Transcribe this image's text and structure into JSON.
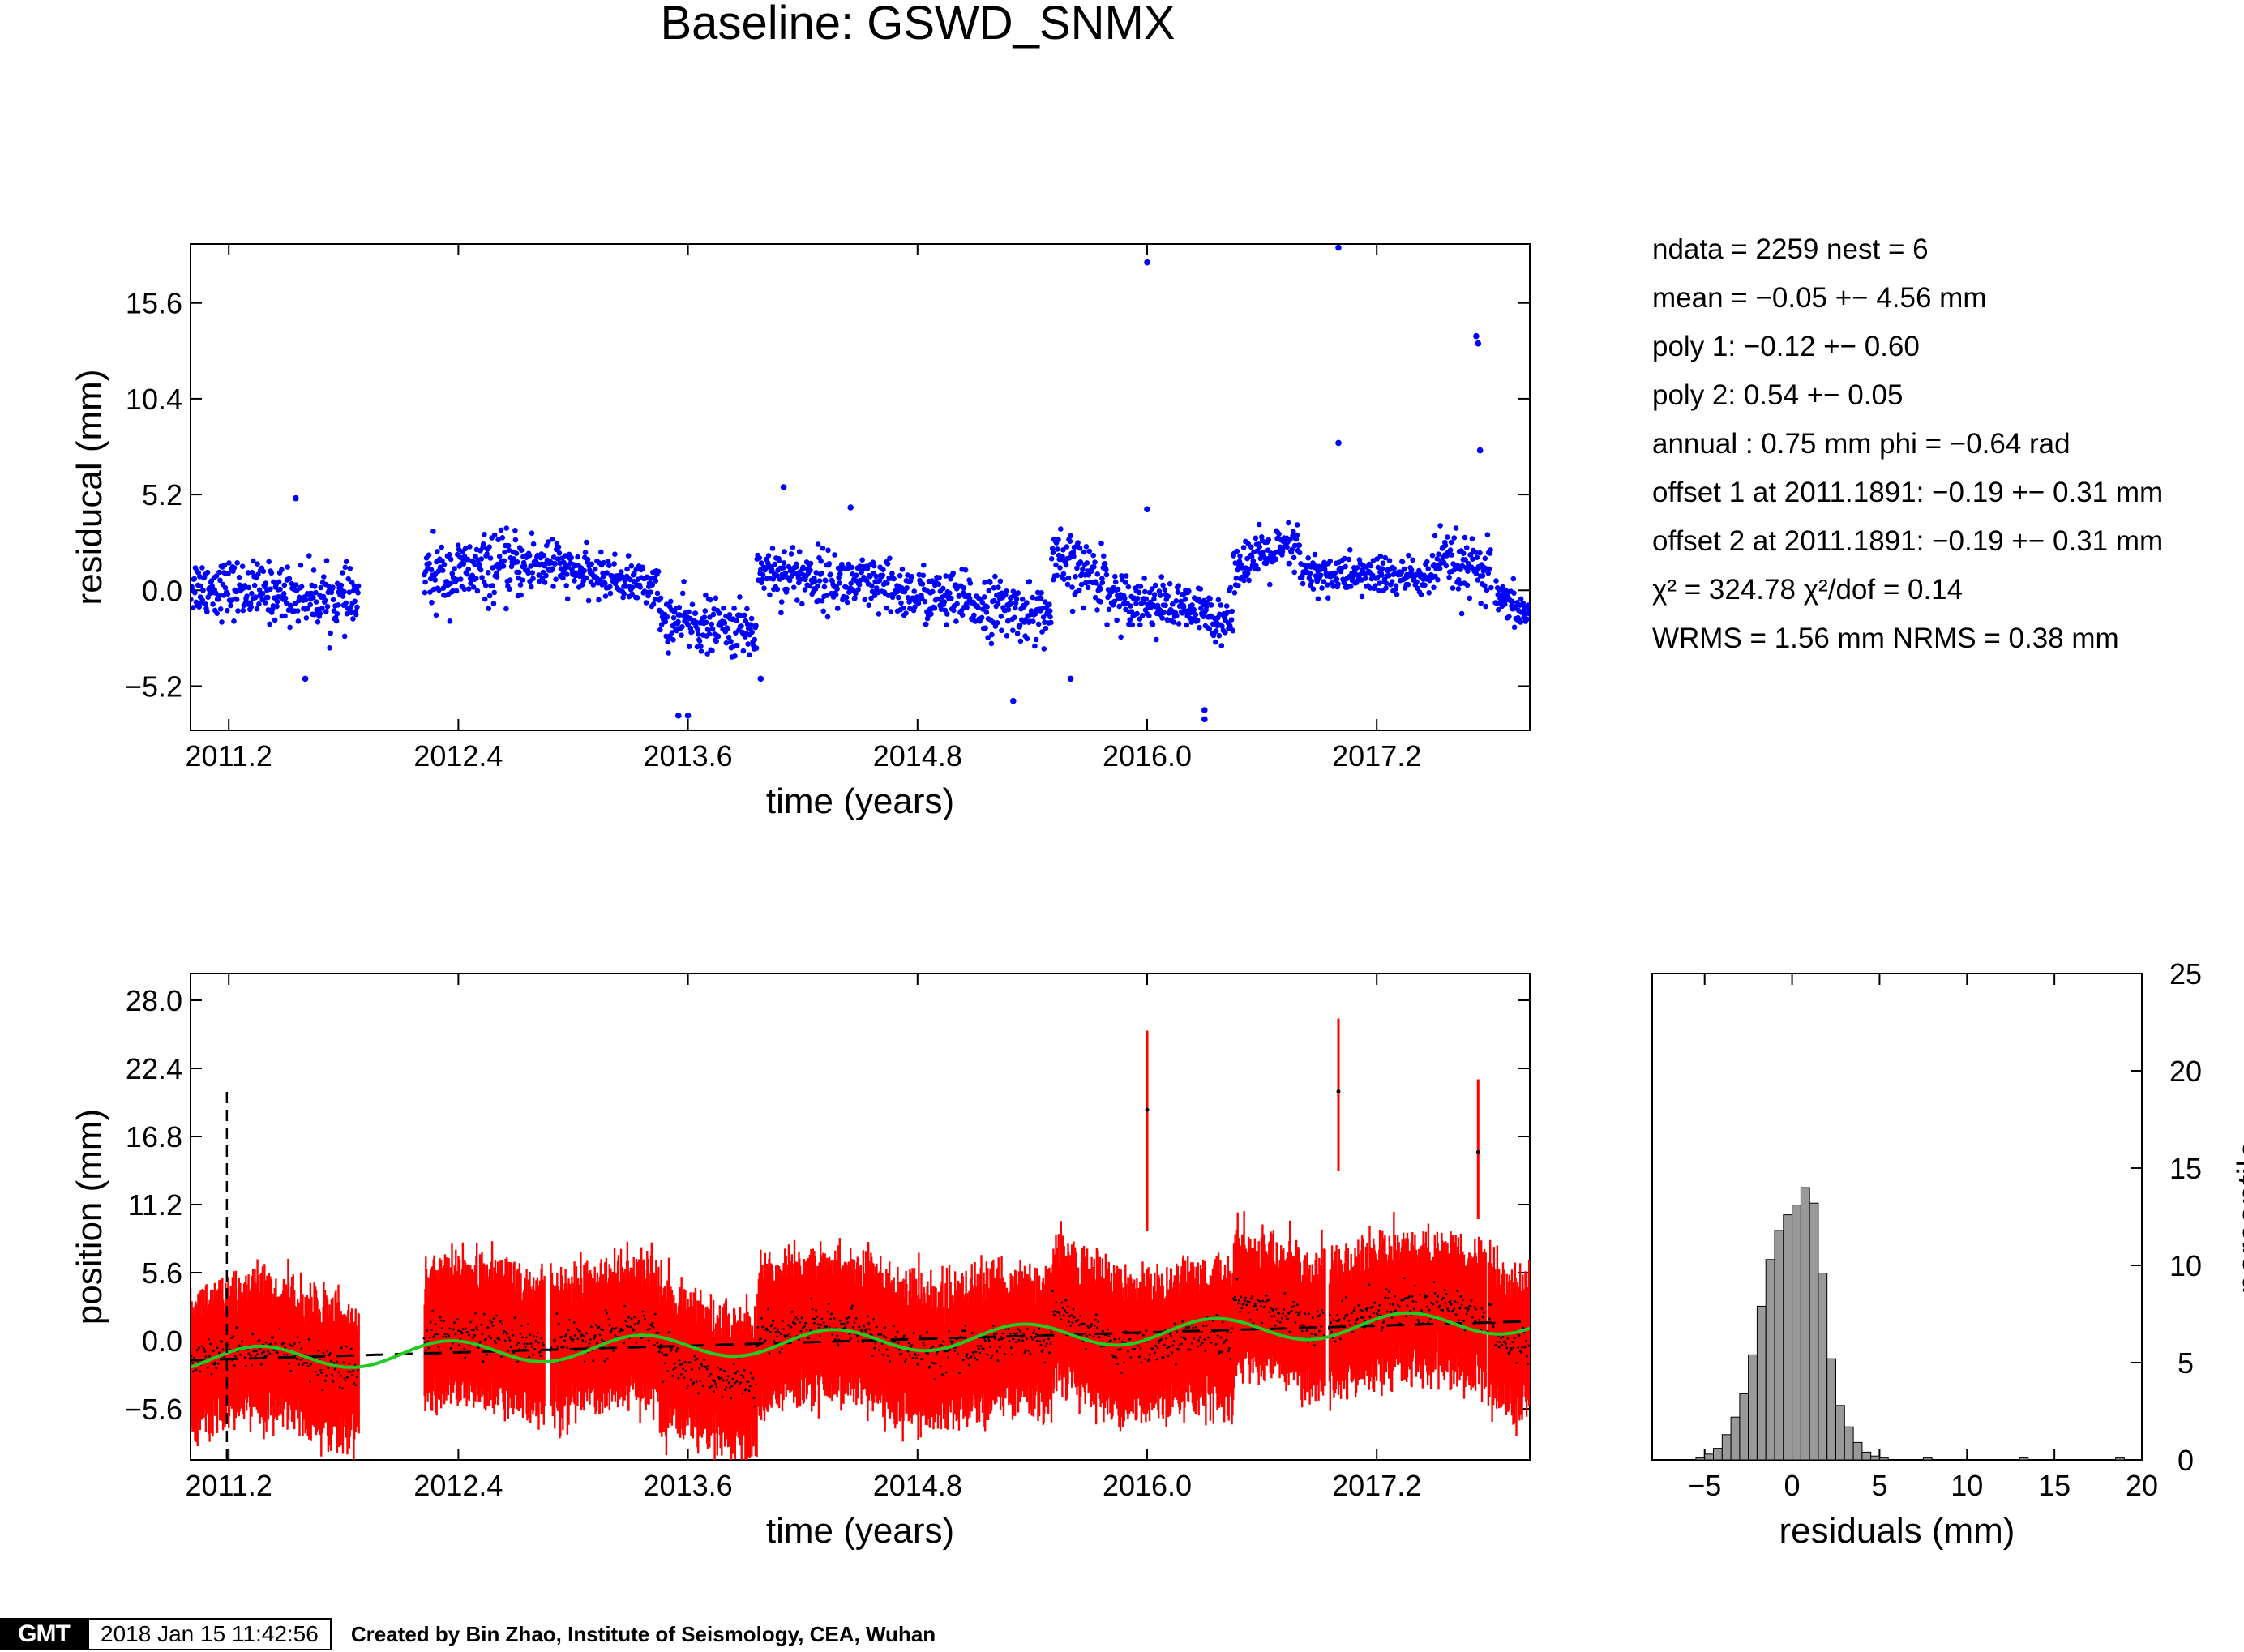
{
  "title": "Baseline: GSWD_SNMX",
  "stats": {
    "lines": [
      "ndata = 2259  nest = 6",
      "mean = −0.05 +− 4.56 mm",
      "poly 1: −0.12 +− 0.60",
      "poly 2: 0.54 +− 0.05",
      "annual : 0.75 mm  phi = −0.64 rad",
      "offset 1 at 2011.1891: −0.19 +− 0.31 mm",
      "offset 2 at 2011.1891: −0.19 +− 0.31 mm",
      "χ² = 324.78  χ²/dof = 0.14",
      "WRMS = 1.56 mm  NRMS = 0.38 mm"
    ]
  },
  "footer": {
    "logo": "GMT",
    "timestamp": "2018 Jan 15 11:42:56",
    "credit": "Created by Bin Zhao, Institute of Seismology, CEA, Wuhan"
  },
  "colors": {
    "residual_points": "#0000ff",
    "position_bars": "#ff0000",
    "model_curve": "#22cc22",
    "trend_line": "#000000",
    "histogram_bars": "#999999"
  },
  "chart_data": [
    {
      "type": "scatter",
      "xlabel": "time (years)",
      "ylabel": "residucal (mm)",
      "xlim": [
        2011.0,
        2018.0
      ],
      "ylim": [
        -7.6,
        18.8
      ],
      "xticks": [
        "2011.2",
        "2012.4",
        "2013.6",
        "2014.8",
        "2016.0",
        "2017.2"
      ],
      "xtick_values": [
        2011.2,
        2012.4,
        2013.6,
        2014.8,
        2016.0,
        2017.2
      ],
      "yticks": [
        "15.6",
        "10.4",
        "5.2",
        "0.0",
        "−5.2"
      ],
      "ytick_values": [
        15.6,
        10.4,
        5.2,
        0.0,
        -5.2
      ],
      "segments": [
        {
          "x": [
            2011.0,
            2011.88
          ],
          "mean": [
            0.3,
            -0.6
          ],
          "spread": 1.4
        },
        {
          "x": [
            2012.22,
            2012.92
          ],
          "mean": [
            0.7,
            1.6
          ],
          "spread": 1.6
        },
        {
          "x": [
            2012.92,
            2013.45
          ],
          "mean": [
            1.2,
            0.2
          ],
          "spread": 1.0
        },
        {
          "x": [
            2013.45,
            2013.96
          ],
          "mean": [
            -1.6,
            -2.3
          ],
          "spread": 1.3
        },
        {
          "x": [
            2013.96,
            2015.5
          ],
          "mean": [
            1.2,
            -1.4
          ],
          "spread": 1.4
        },
        {
          "x": [
            2015.5,
            2015.8
          ],
          "mean": [
            1.5,
            0.6
          ],
          "spread": 1.6
        },
        {
          "x": [
            2015.8,
            2016.45
          ],
          "mean": [
            -0.2,
            -1.6
          ],
          "spread": 1.2
        },
        {
          "x": [
            2016.45,
            2016.8
          ],
          "mean": [
            1.4,
            2.4
          ],
          "spread": 1.2
        },
        {
          "x": [
            2016.8,
            2017.5
          ],
          "mean": [
            0.9,
            0.7
          ],
          "spread": 1.0
        },
        {
          "x": [
            2017.5,
            2017.8
          ],
          "mean": [
            1.6,
            0.8
          ],
          "spread": 1.5
        },
        {
          "x": [
            2017.82,
            2018.0
          ],
          "mean": [
            -0.4,
            -1.4
          ],
          "spread": 0.9
        }
      ],
      "outliers": [
        {
          "x": 2016.0,
          "y": 17.8
        },
        {
          "x": 2017.0,
          "y": 18.6
        },
        {
          "x": 2017.0,
          "y": 8.0
        },
        {
          "x": 2017.72,
          "y": 13.8
        },
        {
          "x": 2017.73,
          "y": 13.4
        },
        {
          "x": 2017.74,
          "y": 7.6
        },
        {
          "x": 2016.0,
          "y": 4.4
        },
        {
          "x": 2011.55,
          "y": 5.0
        },
        {
          "x": 2014.1,
          "y": 5.6
        },
        {
          "x": 2014.45,
          "y": 4.5
        },
        {
          "x": 2015.3,
          "y": -6.0
        },
        {
          "x": 2016.3,
          "y": -7.0
        },
        {
          "x": 2016.3,
          "y": -6.5
        },
        {
          "x": 2013.6,
          "y": -6.8
        },
        {
          "x": 2013.55,
          "y": -6.8
        },
        {
          "x": 2011.6,
          "y": -4.8
        },
        {
          "x": 2015.6,
          "y": -4.8
        },
        {
          "x": 2013.98,
          "y": -4.8
        }
      ]
    },
    {
      "type": "line",
      "xlabel": "time (years)",
      "ylabel": "position (mm)",
      "xlim": [
        2011.0,
        2018.0
      ],
      "ylim": [
        -9.8,
        30.2
      ],
      "xticks": [
        "2011.2",
        "2012.4",
        "2013.6",
        "2014.8",
        "2016.0",
        "2017.2"
      ],
      "xtick_values": [
        2011.2,
        2012.4,
        2013.6,
        2014.8,
        2016.0,
        2017.2
      ],
      "yticks": [
        "28.0",
        "22.4",
        "16.8",
        "11.2",
        "5.6",
        "0.0",
        "−5.6"
      ],
      "ytick_values": [
        28.0,
        22.4,
        16.8,
        11.2,
        5.6,
        0.0,
        -5.6
      ],
      "offset_epoch": 2011.19,
      "offset_line_range": [
        -9.8,
        21.0
      ],
      "gaps": [
        [
          2011.88,
          2012.22
        ],
        [
          2012.85,
          2012.88
        ],
        [
          2016.93,
          2016.95
        ],
        [
          2017.77,
          2017.78
        ]
      ],
      "model": {
        "trend_start": -1.6,
        "trend_end": 1.6,
        "annual_amplitude": 0.75,
        "annual_phase": -0.64
      },
      "error_bar_halfwidth": 4.5,
      "spikes": [
        {
          "x": 2016.0,
          "y": 19.0,
          "low": 9.0,
          "high": 25.5
        },
        {
          "x": 2017.0,
          "y": 20.5,
          "low": 14.0,
          "high": 26.5
        },
        {
          "x": 2017.73,
          "y": 15.5,
          "low": 10.0,
          "high": 21.5
        }
      ]
    },
    {
      "type": "bar",
      "xlabel": "residuals (mm)",
      "ylabel": "percentile",
      "xlim": [
        -8,
        20
      ],
      "ylim": [
        0,
        25
      ],
      "xticks": [
        "−5",
        "0",
        "5",
        "10",
        "15",
        "20"
      ],
      "xtick_values": [
        -5,
        0,
        5,
        10,
        15,
        20
      ],
      "yticks": [
        "0",
        "5",
        "10",
        "15",
        "20",
        "25"
      ],
      "ytick_values": [
        0,
        5,
        10,
        15,
        20,
        25
      ],
      "bin_width": 0.5,
      "bins": [
        [
          -5.5,
          0.1
        ],
        [
          -5.0,
          0.3
        ],
        [
          -4.5,
          0.6
        ],
        [
          -4.0,
          1.3
        ],
        [
          -3.5,
          2.2
        ],
        [
          -3.0,
          3.4
        ],
        [
          -2.5,
          5.4
        ],
        [
          -2.0,
          7.9
        ],
        [
          -1.5,
          10.3
        ],
        [
          -1.0,
          11.8
        ],
        [
          -0.5,
          12.6
        ],
        [
          0.0,
          13.1
        ],
        [
          0.5,
          14.0
        ],
        [
          1.0,
          13.2
        ],
        [
          1.5,
          9.6
        ],
        [
          2.0,
          5.2
        ],
        [
          2.5,
          2.8
        ],
        [
          3.0,
          1.7
        ],
        [
          3.5,
          0.9
        ],
        [
          4.0,
          0.4
        ],
        [
          4.5,
          0.2
        ],
        [
          5.0,
          0.1
        ],
        [
          7.5,
          0.1
        ],
        [
          13.0,
          0.1
        ],
        [
          18.5,
          0.1
        ]
      ]
    }
  ]
}
